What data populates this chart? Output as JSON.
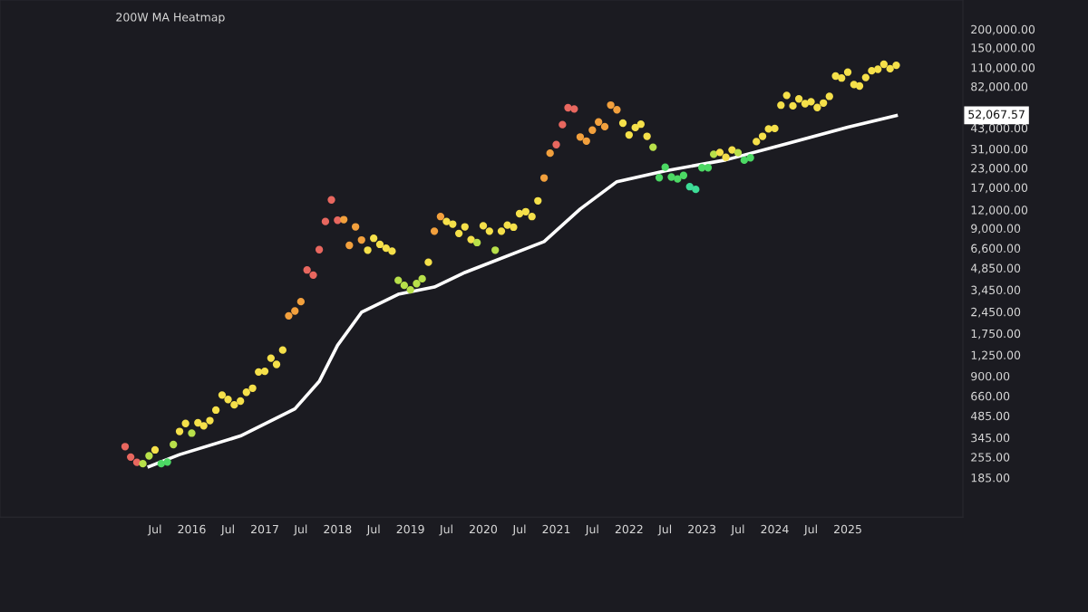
{
  "chart_data": {
    "type": "scatter",
    "title": "200W MA Heatmap",
    "log": "y",
    "grid": false,
    "legend": false,
    "xlim": [
      "2013-05-15",
      "2026-08-01"
    ],
    "xticks": [
      {
        "value": "2015-07-01",
        "label": "Jul"
      },
      {
        "value": "2016-01-01",
        "label": "2016"
      },
      {
        "value": "2016-07-01",
        "label": "Jul"
      },
      {
        "value": "2017-01-01",
        "label": "2017"
      },
      {
        "value": "2017-07-01",
        "label": "Jul"
      },
      {
        "value": "2018-01-01",
        "label": "2018"
      },
      {
        "value": "2018-07-01",
        "label": "Jul"
      },
      {
        "value": "2019-01-01",
        "label": "2019"
      },
      {
        "value": "2019-07-01",
        "label": "Jul"
      },
      {
        "value": "2020-01-01",
        "label": "2020"
      },
      {
        "value": "2020-07-01",
        "label": "Jul"
      },
      {
        "value": "2021-01-01",
        "label": "2021"
      },
      {
        "value": "2021-07-01",
        "label": "Jul"
      },
      {
        "value": "2022-01-01",
        "label": "2022"
      },
      {
        "value": "2022-07-01",
        "label": "Jul"
      },
      {
        "value": "2023-01-01",
        "label": "2023"
      },
      {
        "value": "2023-07-01",
        "label": "Jul"
      },
      {
        "value": "2024-01-01",
        "label": "2024"
      },
      {
        "value": "2024-07-01",
        "label": "Jul"
      },
      {
        "value": "2025-01-01",
        "label": "2025"
      }
    ],
    "ylim": [
      100,
      315000
    ],
    "yticks": [
      {
        "value": 185,
        "label": "185.00"
      },
      {
        "value": 255,
        "label": "255.00"
      },
      {
        "value": 345,
        "label": "345.00"
      },
      {
        "value": 485,
        "label": "485.00"
      },
      {
        "value": 660,
        "label": "660.00"
      },
      {
        "value": 900,
        "label": "900.00"
      },
      {
        "value": 1250,
        "label": "1,250.00"
      },
      {
        "value": 1750,
        "label": "1,750.00"
      },
      {
        "value": 2450,
        "label": "2,450.00"
      },
      {
        "value": 3450,
        "label": "3,450.00"
      },
      {
        "value": 4850,
        "label": "4,850.00"
      },
      {
        "value": 6600,
        "label": "6,600.00"
      },
      {
        "value": 9000,
        "label": "9,000.00"
      },
      {
        "value": 12000,
        "label": "12,000.00"
      },
      {
        "value": 17000,
        "label": "17,000.00"
      },
      {
        "value": 23000,
        "label": "23,000.00"
      },
      {
        "value": 31000,
        "label": "31,000.00"
      },
      {
        "value": 43000,
        "label": "43,000.00"
      },
      {
        "value": 82000,
        "label": "82,000.00"
      },
      {
        "value": 110000,
        "label": "110,000.00"
      },
      {
        "value": 150000,
        "label": "150,000.00"
      },
      {
        "value": 200000,
        "label": "200,000.00"
      }
    ],
    "annotations": [
      "52,067.57"
    ],
    "series": [
      {
        "marker": "circle",
        "x": [
          "2015-02",
          "2015-03",
          "2015-04",
          "2015-05",
          "2015-06",
          "2015-07",
          "2015-08",
          "2015-09",
          "2015-10",
          "2015-11",
          "2015-12",
          "2016-01",
          "2016-02",
          "2016-03",
          "2016-04",
          "2016-05",
          "2016-06",
          "2016-07",
          "2016-08",
          "2016-09",
          "2016-10",
          "2016-11",
          "2016-12",
          "2017-01",
          "2017-02",
          "2017-03",
          "2017-04",
          "2017-05",
          "2017-06",
          "2017-07",
          "2017-08",
          "2017-09",
          "2017-10",
          "2017-11",
          "2017-12",
          "2018-01",
          "2018-02",
          "2018-03",
          "2018-04",
          "2018-05",
          "2018-06",
          "2018-07",
          "2018-08",
          "2018-09",
          "2018-10",
          "2018-11",
          "2018-12",
          "2019-01",
          "2019-02",
          "2019-03",
          "2019-04",
          "2019-05",
          "2019-06",
          "2019-07",
          "2019-08",
          "2019-09",
          "2019-10",
          "2019-11",
          "2019-12",
          "2020-01",
          "2020-02",
          "2020-03",
          "2020-04",
          "2020-05",
          "2020-06",
          "2020-07",
          "2020-08",
          "2020-09",
          "2020-10",
          "2020-11",
          "2020-12",
          "2021-01",
          "2021-02",
          "2021-03",
          "2021-04",
          "2021-05",
          "2021-06",
          "2021-07",
          "2021-08",
          "2021-09",
          "2021-10",
          "2021-11",
          "2021-12",
          "2022-01",
          "2022-02",
          "2022-03",
          "2022-04",
          "2022-05",
          "2022-06",
          "2022-07",
          "2022-08",
          "2022-09",
          "2022-10",
          "2022-11",
          "2022-12",
          "2023-01",
          "2023-02",
          "2023-03",
          "2023-04",
          "2023-05",
          "2023-06",
          "2023-07",
          "2023-08",
          "2023-09",
          "2023-10",
          "2023-11",
          "2023-12",
          "2024-01",
          "2024-02",
          "2024-03",
          "2024-04",
          "2024-05",
          "2024-06",
          "2024-07",
          "2024-08",
          "2024-09",
          "2024-10",
          "2024-11",
          "2024-12",
          "2025-01",
          "2025-02",
          "2025-03",
          "2025-04",
          "2025-05",
          "2025-06",
          "2025-07",
          "2025-08",
          "2025-09"
        ],
        "values": [
          300,
          255,
          235,
          230,
          260,
          285,
          230,
          236,
          310,
          380,
          430,
          370,
          435,
          415,
          450,
          530,
          670,
          625,
          575,
          610,
          700,
          745,
          960,
          970,
          1190,
          1080,
          1350,
          2300,
          2480,
          2870,
          4700,
          4340,
          6450,
          10000,
          14000,
          10200,
          10300,
          6900,
          9200,
          7500,
          6400,
          7700,
          7000,
          6600,
          6300,
          4000,
          3700,
          3450,
          3800,
          4100,
          5300,
          8600,
          10800,
          10000,
          9600,
          8300,
          9200,
          7550,
          7200,
          9350,
          8600,
          6400,
          8600,
          9450,
          9150,
          11300,
          11650,
          10800,
          13800,
          19700,
          29000,
          33100,
          45200,
          58800,
          57700,
          37300,
          35000,
          41500,
          47100,
          43800,
          61300,
          57000,
          46300,
          38500,
          43200,
          45500,
          37700,
          31800,
          19800,
          23300,
          20000,
          19400,
          20500,
          17200,
          16500,
          23100,
          23100,
          28500,
          29300,
          27200,
          30500,
          29200,
          26000,
          27000,
          34700,
          37700,
          42300,
          42600,
          61200,
          71300,
          60600,
          67500,
          62700,
          64600,
          59000,
          63300,
          70200,
          96400,
          93400,
          102400,
          84400,
          82500,
          94200,
          104600,
          107100,
          115700,
          108000,
          114000
        ],
        "colors": [
          "#e8675f",
          "#e8675f",
          "#e8675f",
          "#b8e04a",
          "#b8e04a",
          "#f5e04a",
          "#4cd964",
          "#4cd964",
          "#b8e04a",
          "#f5e04a",
          "#f5e04a",
          "#b8e04a",
          "#f5e04a",
          "#f5e04a",
          "#f5e04a",
          "#f5e04a",
          "#f5e04a",
          "#f5e04a",
          "#f5e04a",
          "#f5e04a",
          "#f5e04a",
          "#f5e04a",
          "#f5e04a",
          "#f5e04a",
          "#f5e04a",
          "#f5e04a",
          "#f5e04a",
          "#f2a03d",
          "#f2a03d",
          "#f2a03d",
          "#e8675f",
          "#e8675f",
          "#e8675f",
          "#e8675f",
          "#e8675f",
          "#e8675f",
          "#f2a03d",
          "#f2a03d",
          "#f2a03d",
          "#f2a03d",
          "#f5e04a",
          "#f5e04a",
          "#f5e04a",
          "#f5e04a",
          "#f5e04a",
          "#b8e04a",
          "#b8e04a",
          "#b8e04a",
          "#b8e04a",
          "#b8e04a",
          "#f5e04a",
          "#f2a03d",
          "#f2a03d",
          "#f5e04a",
          "#f5e04a",
          "#f5e04a",
          "#f5e04a",
          "#f5e04a",
          "#b8e04a",
          "#f5e04a",
          "#f5e04a",
          "#b8e04a",
          "#f5e04a",
          "#f5e04a",
          "#f5e04a",
          "#f5e04a",
          "#f5e04a",
          "#f5e04a",
          "#f5e04a",
          "#f2a03d",
          "#f2a03d",
          "#e8675f",
          "#e8675f",
          "#e8675f",
          "#e8675f",
          "#f2a03d",
          "#f2a03d",
          "#f2a03d",
          "#f2a03d",
          "#f2a03d",
          "#f2a03d",
          "#f2a03d",
          "#f5e04a",
          "#f5e04a",
          "#f5e04a",
          "#f5e04a",
          "#f5e04a",
          "#b8e04a",
          "#4cd964",
          "#4cd964",
          "#4cd964",
          "#4cd964",
          "#4cd964",
          "#3ddc97",
          "#3ddc97",
          "#4cd964",
          "#4cd964",
          "#b8e04a",
          "#f5e04a",
          "#f5e04a",
          "#f5e04a",
          "#b8e04a",
          "#4cd964",
          "#4cd964",
          "#f5e04a",
          "#f5e04a",
          "#f5e04a",
          "#f5e04a",
          "#f5e04a",
          "#f5e04a",
          "#f5e04a",
          "#f5e04a",
          "#f5e04a",
          "#f5e04a",
          "#f5e04a",
          "#f5e04a",
          "#f5e04a",
          "#f5e04a",
          "#f5e04a",
          "#f5e04a",
          "#f5e04a",
          "#f5e04a",
          "#f5e04a",
          "#f5e04a",
          "#f5e04a",
          "#f5e04a",
          "#f5e04a",
          "#f5e04a"
        ]
      },
      {
        "type": "line",
        "color": "#ffffff",
        "x": [
          "2015-06",
          "2015-11",
          "2016-09",
          "2017-06",
          "2017-10",
          "2018-01",
          "2018-05",
          "2018-11",
          "2019-05",
          "2019-10",
          "2020-11",
          "2021-05",
          "2021-11",
          "2022-07",
          "2023-05",
          "2024-03",
          "2025-01",
          "2025-09"
        ],
        "values": [
          220,
          265,
          354,
          540,
          828,
          1455,
          2430,
          3220,
          3600,
          4520,
          7310,
          12150,
          18600,
          22000,
          26100,
          33600,
          43400,
          52067.57
        ]
      }
    ]
  }
}
